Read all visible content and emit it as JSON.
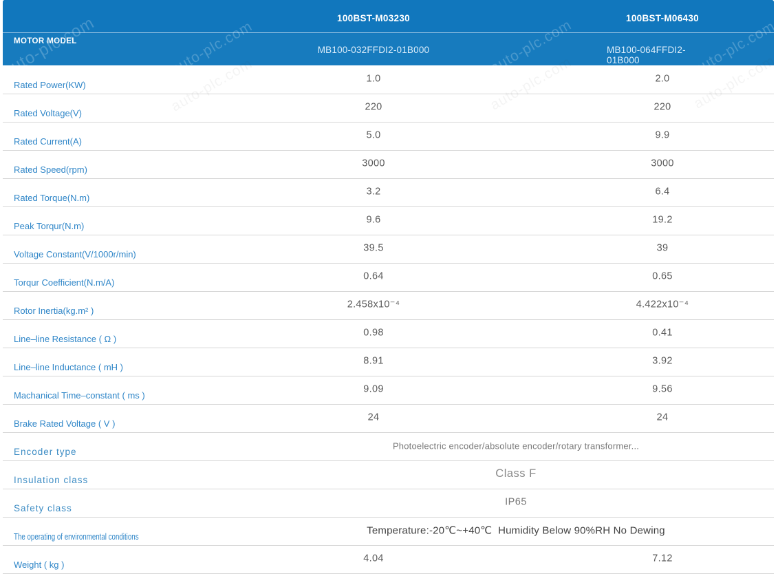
{
  "watermark": {
    "text": "auto-plc.com"
  },
  "colors": {
    "header_blue": "#1478BE",
    "header_blue_top": "#1177BD",
    "header_blue_bottom": "#177BBE",
    "label_blue": "#2F86C8",
    "value_gray": "#5A5A5A",
    "row_divider": "#D6D6D6"
  },
  "header": {
    "row_label": "MOTOR MODEL",
    "columns": [
      {
        "model": "100BST-M03230",
        "part": "MB100-032FFDI2-01B000"
      },
      {
        "model": "100BST-M06430",
        "part": "MB100-064FFDI2-01B000"
      }
    ]
  },
  "rows": [
    {
      "label": "Rated Power(KW)",
      "values": [
        "1.0",
        "2.0"
      ]
    },
    {
      "label": "Rated Voltage(V)",
      "values": [
        "220",
        "220"
      ]
    },
    {
      "label": "Rated Current(A)",
      "values": [
        "5.0",
        "9.9"
      ]
    },
    {
      "label": "Rated Speed(rpm)",
      "values": [
        "3000",
        "3000"
      ]
    },
    {
      "label": "Rated Torque(N.m)",
      "values": [
        "3.2",
        "6.4"
      ]
    },
    {
      "label": "Peak Torqur(N.m)",
      "values": [
        "9.6",
        "19.2"
      ]
    },
    {
      "label": "Voltage Constant(V/1000r/min)",
      "values": [
        "39.5",
        "39"
      ]
    },
    {
      "label": "Torqur Coefficient(N.m/A)",
      "values": [
        "0.64",
        "0.65"
      ]
    },
    {
      "label": "Rotor Inertia(kg.m² )",
      "values": [
        "2.458x10⁻⁴",
        "4.422x10⁻⁴"
      ]
    },
    {
      "label": "Line–line Resistance ( Ω )",
      "values": [
        "0.98",
        "0.41"
      ]
    },
    {
      "label": "Line–line Inductance ( mH )",
      "values": [
        "8.91",
        "3.92"
      ]
    },
    {
      "label": "Machanical Time–constant ( ms )",
      "values": [
        "9.09",
        "9.56"
      ]
    },
    {
      "label": "Brake Rated Voltage ( V )",
      "values": [
        "24",
        "24"
      ]
    },
    {
      "label": "Encoder type",
      "label_style": "spaced",
      "merged": "Photoelectric encoder/absolute encoder/rotary transformer...",
      "merged_style": "small"
    },
    {
      "label": "Insulation class",
      "label_style": "spaced",
      "merged": "Class F",
      "merged_style": "large"
    },
    {
      "label": "Safety class",
      "label_style": "spaced",
      "merged": "IP65",
      "merged_style": "medium"
    },
    {
      "label": "The operating of environmental conditions",
      "label_style": "condensed",
      "merged": "Temperature:-20℃~+40℃  Humidity Below 90%RH No Dewing",
      "merged_style": "dark"
    },
    {
      "label": "Weight ( kg )",
      "values": [
        "4.04",
        "7.12"
      ]
    }
  ]
}
